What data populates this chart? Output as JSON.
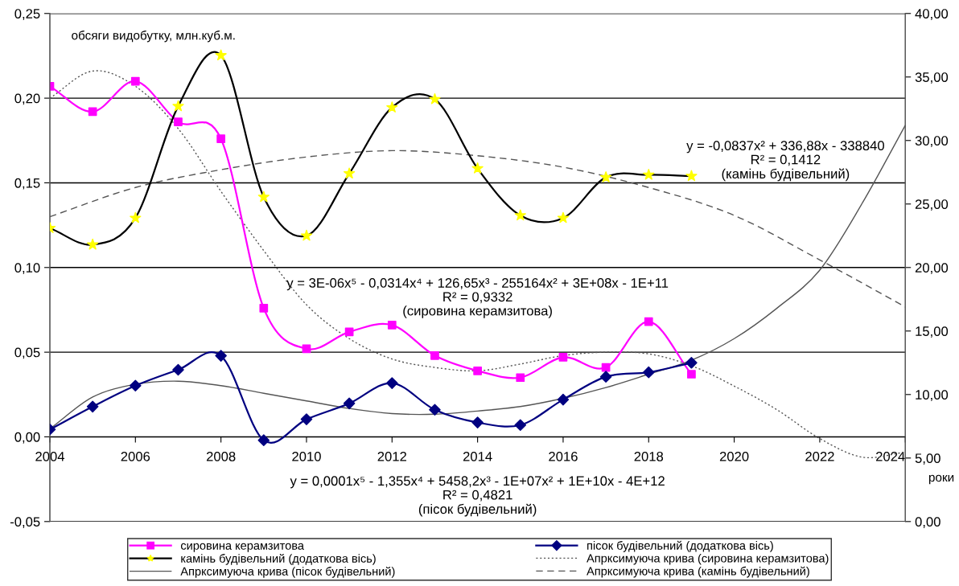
{
  "chart_data": {
    "type": "line",
    "ylabel": "обсяги видобутку, млн.куб.м.",
    "xlabel": "роки",
    "x": [
      2004,
      2005,
      2006,
      2007,
      2008,
      2009,
      2010,
      2011,
      2012,
      2013,
      2014,
      2015,
      2016,
      2017,
      2018,
      2019
    ],
    "series": [
      {
        "name": "сировина керамзитова",
        "color": "#ff00ff",
        "marker": "square",
        "line_style": "solid",
        "values": [
          0.207,
          0.192,
          0.21,
          0.186,
          0.176,
          0.076,
          0.052,
          0.062,
          0.066,
          0.048,
          0.039,
          0.035,
          0.047,
          0.041,
          0.068,
          0.037
        ]
      },
      {
        "name": "пісок будівельний (додаткова вісь)",
        "color": "#000080",
        "marker": "diamond",
        "line_style": "solid",
        "axis": "y2",
        "values": [
          7.25,
          9.05,
          10.7,
          11.95,
          13.05,
          6.4,
          8.05,
          9.3,
          10.9,
          8.8,
          7.8,
          7.6,
          9.6,
          11.4,
          11.75,
          12.5
        ]
      },
      {
        "name": "камінь будівельний (додаткова вісь)",
        "color": "#000000",
        "colors": [
          "#ffff00",
          "#ffff00",
          "#ffff00",
          "#ffff00",
          "#ffff00",
          "#ffff00",
          "#ffff00",
          "#ffff00",
          "#ffff00",
          "#ffff00",
          "#ffff00",
          "#ffff00",
          "#ffff00",
          "#ffff00",
          "#ffff00",
          "#ffff00"
        ],
        "marker": "star",
        "line_style": "solid",
        "axis": "y2",
        "values": [
          23.1,
          21.8,
          23.9,
          32.7,
          36.7,
          25.55,
          22.5,
          27.4,
          32.6,
          33.25,
          27.8,
          24.1,
          23.9,
          27.1,
          27.3,
          27.2
        ]
      },
      {
        "name": "Апрксимуюча крива (сировина керамзитова)",
        "color": "#555555",
        "marker": "none",
        "line_style": "dotted",
        "x": [
          2004,
          2005,
          2006,
          2007,
          2008,
          2009,
          2010,
          2011,
          2012,
          2013,
          2014,
          2015,
          2016,
          2017,
          2018,
          2019,
          2020,
          2021,
          2022,
          2023,
          2024
        ],
        "values": [
          0.2,
          0.216,
          0.207,
          0.182,
          0.145,
          0.11,
          0.078,
          0.058,
          0.046,
          0.041,
          0.039,
          0.043,
          0.048,
          0.05,
          0.049,
          0.042,
          0.03,
          0.016,
          -0.001,
          -0.012,
          -0.009
        ]
      },
      {
        "name": "Апрксимуюча крива (пісок будівельний)",
        "color": "#555555",
        "marker": "none",
        "line_style": "solid",
        "axis": "y2",
        "x": [
          2004,
          2005,
          2006,
          2007,
          2008,
          2009,
          2010,
          2011,
          2012,
          2013,
          2014,
          2015,
          2016,
          2017,
          2018,
          2019,
          2020,
          2021,
          2022,
          2023,
          2024
        ],
        "values": [
          7.3,
          9.8,
          10.8,
          11.05,
          10.7,
          10.1,
          9.5,
          8.9,
          8.5,
          8.45,
          8.7,
          9.05,
          9.7,
          10.55,
          11.6,
          12.7,
          14.4,
          16.8,
          19.8,
          25.1,
          31.2
        ]
      },
      {
        "name": "Апрксимуюча крива (камінь будівельний)",
        "color": "#555555",
        "marker": "none",
        "line_style": "dashed",
        "axis": "y2",
        "x": [
          2004,
          2006,
          2008,
          2010,
          2012,
          2014,
          2016,
          2018,
          2020,
          2022,
          2024
        ],
        "values": [
          24.0,
          26.3,
          27.7,
          28.7,
          29.2,
          28.8,
          27.9,
          26.3,
          24.1,
          20.6,
          16.9
        ]
      }
    ],
    "xlim": [
      2004,
      2024
    ],
    "xticks": [
      2004,
      2006,
      2008,
      2010,
      2012,
      2014,
      2016,
      2018,
      2020,
      2022,
      2024
    ],
    "ylim": [
      -0.05,
      0.25
    ],
    "yticks": [
      {
        "value": -0.05,
        "label": "-0,05"
      },
      {
        "value": 0,
        "label": "0,00"
      },
      {
        "value": 0.05,
        "label": "0,05"
      },
      {
        "value": 0.1,
        "label": "0,10"
      },
      {
        "value": 0.15,
        "label": "0,15"
      },
      {
        "value": 0.2,
        "label": "0,20"
      },
      {
        "value": 0.25,
        "label": "0,25"
      }
    ],
    "y2lim": [
      0,
      40
    ],
    "y2ticks": [
      {
        "value": 0,
        "label": "0,00"
      },
      {
        "value": 5,
        "label": "5,00"
      },
      {
        "value": 10,
        "label": "10,00"
      },
      {
        "value": 15,
        "label": "15,00"
      },
      {
        "value": 20,
        "label": "20,00"
      },
      {
        "value": 25,
        "label": "25,00"
      },
      {
        "value": 30,
        "label": "30,00"
      },
      {
        "value": 35,
        "label": "35,00"
      },
      {
        "value": 40,
        "label": "40,00"
      }
    ],
    "annotations": [
      "y = -0,0837x² + 336,88x - 338840\nR² = 0,1412\n(камінь будівельний)",
      "y = 3E-06x⁵ - 0,0314x⁴ + 126,65x³ - 255164x² + 3E+08x - 1E+11\nR² = 0,9332\n(сировина керамзитова)",
      "y = 0,0001x⁵ - 1,355x⁴ + 5458,2x³ - 1E+07x² + 1E+10x - 4E+12\nR² = 0,4821\n(пісок будівельний)"
    ],
    "grid": "y",
    "legend": "bottom"
  }
}
